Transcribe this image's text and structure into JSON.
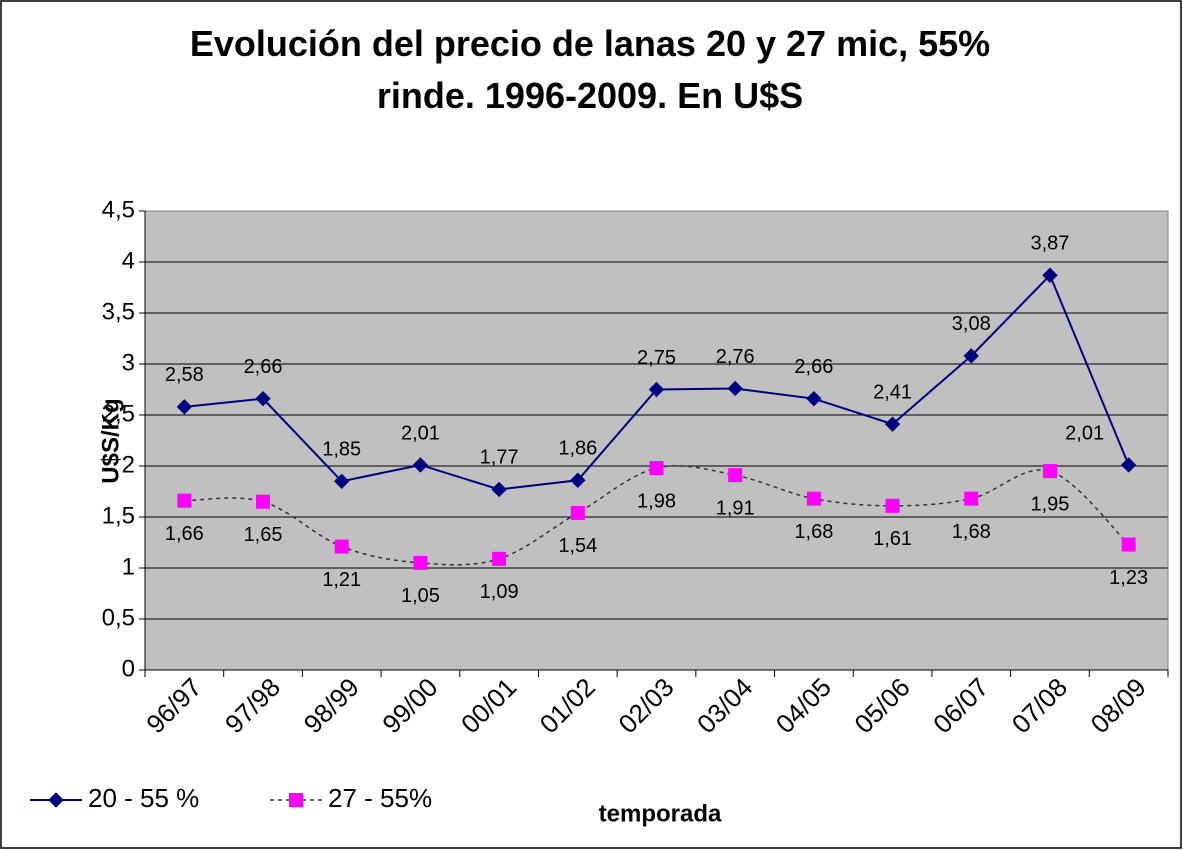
{
  "chart_data": {
    "type": "line",
    "title": "Evolución del precio de lanas 20 y 27 mic, 55% rinde. 1996-2009. En U$S",
    "x_label": "temporada",
    "y_label": "U$S/Kg",
    "categories": [
      "96/97",
      "97/98",
      "98/99",
      "99/00",
      "00/01",
      "01/02",
      "02/03",
      "03/04",
      "04/05",
      "05/06",
      "06/07",
      "07/08",
      "08/09"
    ],
    "series": [
      {
        "name": "20 - 55 %",
        "color": "#000080",
        "marker": "diamond",
        "dash": "solid",
        "values": [
          2.58,
          2.66,
          1.85,
          2.01,
          1.77,
          1.86,
          2.75,
          2.76,
          2.66,
          2.41,
          3.08,
          3.87,
          2.01
        ],
        "value_labels": [
          "2,58",
          "2,66",
          "1,85",
          "2,01",
          "1,77",
          "1,86",
          "2,75",
          "2,76",
          "2,66",
          "2,41",
          "3,08",
          "3,87",
          "2,01"
        ]
      },
      {
        "name": "27 - 55%",
        "color": "#ff00ff",
        "marker": "square",
        "dash": "dotted",
        "values": [
          1.66,
          1.65,
          1.21,
          1.05,
          1.09,
          1.54,
          1.98,
          1.91,
          1.68,
          1.61,
          1.68,
          1.95,
          1.23
        ],
        "value_labels": [
          "1,66",
          "1,65",
          "1,21",
          "1,05",
          "1,09",
          "1,54",
          "1,98",
          "1,91",
          "1,68",
          "1,61",
          "1,68",
          "1,95",
          "1,23"
        ]
      }
    ],
    "ylim": [
      0,
      4.5
    ],
    "yticks": [
      0,
      {
        "value": 0.5,
        "label": "0,5"
      },
      1,
      {
        "value": 1.5,
        "label": "1,5"
      },
      2,
      {
        "value": 2.5,
        "label": "2,5"
      },
      3,
      {
        "value": 3.5,
        "label": "3,5"
      },
      4,
      {
        "value": 4.5,
        "label": "4,5"
      }
    ],
    "grid": true,
    "legend": "bottom-left",
    "plot_background": "#c0c0c0"
  }
}
